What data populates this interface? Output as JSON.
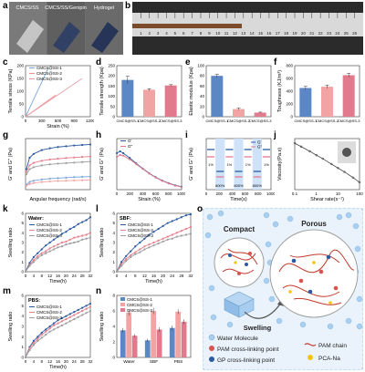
{
  "panel_letters": {
    "a": "a",
    "b": "b",
    "c": "c",
    "d": "d",
    "e": "e",
    "f": "f",
    "g": "g",
    "h": "h",
    "i": "i",
    "j": "j",
    "k": "k",
    "l": "l",
    "m": "m",
    "n": "n",
    "o": "o"
  },
  "photos": {
    "a_labels": [
      "CMCS/SS",
      "CMCS/SS/Genipin",
      "Hydrogel"
    ],
    "ruler_numbers": [
      "1",
      "2",
      "3",
      "4",
      "5",
      "6",
      "7",
      "8",
      "9",
      "10",
      "11",
      "12",
      "13",
      "14",
      "15",
      "16",
      "17",
      "18",
      "19",
      "20",
      "21",
      "22",
      "23",
      "24",
      "25",
      "26"
    ]
  },
  "chart_data": [
    {
      "id": "c",
      "type": "line",
      "xlabel": "Strain (%)",
      "ylabel": "Tensile stress (KPa)",
      "xlim": [
        0,
        1200
      ],
      "ylim": [
        0,
        200
      ],
      "xticks": [
        0,
        300,
        600,
        900,
        1200
      ],
      "yticks": [
        0,
        50,
        100,
        150,
        200
      ],
      "series": [
        {
          "name": "CMCS@SS-1",
          "color": "#7aa7d8",
          "x": [
            0,
            420
          ],
          "y": [
            0,
            190
          ]
        },
        {
          "name": "CMCS@SS-2",
          "color": "#f08f8f",
          "x": [
            0,
            560
          ],
          "y": [
            0,
            85
          ]
        },
        {
          "name": "CMCS@SS-3",
          "color": "#e8a0a8",
          "x": [
            0,
            1050
          ],
          "y": [
            0,
            150
          ]
        }
      ]
    },
    {
      "id": "d",
      "type": "bar",
      "ylabel": "Tensile strength (Kpa)",
      "ylim": [
        0,
        250
      ],
      "yticks": [
        0,
        50,
        100,
        150,
        200,
        250
      ],
      "categories": [
        "CMCS@SS-1",
        "CMCS@SS-2",
        "CMCS@SS-3"
      ],
      "values": [
        180,
        132,
        153
      ],
      "errors": [
        18,
        5,
        4
      ],
      "colors": [
        "#5b87c5",
        "#f2a3a3",
        "#e27a8e"
      ]
    },
    {
      "id": "e",
      "type": "bar",
      "ylabel": "Elastic modulus (Kpa)",
      "ylim": [
        0,
        100
      ],
      "yticks": [
        0,
        20,
        40,
        60,
        80,
        100
      ],
      "categories": [
        "CMCS@SS-1",
        "CMCS@SS-2",
        "CMCS@SS-3"
      ],
      "values": [
        80,
        15,
        8
      ],
      "errors": [
        3,
        2,
        1
      ],
      "colors": [
        "#5b87c5",
        "#f2a3a3",
        "#e27a8e"
      ]
    },
    {
      "id": "f",
      "type": "bar",
      "ylabel": "Toughness (KJ/m³)",
      "ylim": [
        0,
        800
      ],
      "yticks": [
        0,
        200,
        400,
        600,
        800
      ],
      "categories": [
        "CMCS@SS-1",
        "CMCS@SS-2",
        "CMCS@SS-3"
      ],
      "values": [
        450,
        470,
        650
      ],
      "errors": [
        25,
        25,
        30
      ],
      "colors": [
        "#5b87c5",
        "#f2a3a3",
        "#e27a8e"
      ]
    },
    {
      "id": "g",
      "type": "line",
      "xlabel": "Angular frequency (rad/s)",
      "ylabel": "G' and G'' (Pa)",
      "xlim": [
        0,
        80
      ],
      "ylim": [
        0,
        20000
      ],
      "series": [
        {
          "name": "G' CMCS@SS-1",
          "color": "#2c5aa0",
          "x": [
            1,
            5,
            10,
            20,
            30,
            40,
            50,
            60,
            70,
            80
          ],
          "y": [
            8000,
            12500,
            14000,
            15500,
            16200,
            16700,
            17000,
            17300,
            17500,
            17700
          ]
        },
        {
          "name": "G' CMCS@SS-2",
          "color": "#e57f8c",
          "x": [
            1,
            5,
            10,
            20,
            30,
            40,
            50,
            60,
            70,
            80
          ],
          "y": [
            7000,
            9500,
            10500,
            11300,
            11800,
            12100,
            12400,
            12600,
            12800,
            13000
          ]
        },
        {
          "name": "G' CMCS@SS-3",
          "color": "#9e9e9e",
          "x": [
            1,
            5,
            10,
            20,
            30,
            40,
            50,
            60,
            70,
            80
          ],
          "y": [
            6000,
            8000,
            8800,
            9500,
            9900,
            10200,
            10400,
            10600,
            10800,
            11000
          ]
        },
        {
          "name": "G'' CMCS@SS-1",
          "color": "#7aa7d8",
          "x": [
            1,
            5,
            10,
            20,
            30,
            40,
            50,
            60,
            70,
            80
          ],
          "y": [
            2000,
            3000,
            3500,
            4000,
            4300,
            4500,
            4700,
            4900,
            5000,
            5100
          ]
        },
        {
          "name": "G'' CMCS@SS-2",
          "color": "#f2a3a3",
          "x": [
            1,
            5,
            10,
            20,
            30,
            40,
            50,
            60,
            70,
            80
          ],
          "y": [
            1500,
            2200,
            2600,
            3000,
            3200,
            3400,
            3500,
            3600,
            3700,
            3800
          ]
        }
      ]
    },
    {
      "id": "h",
      "type": "line",
      "xlabel": "Strain (%)",
      "ylabel": "G' and G'' (Pa)",
      "xlim": [
        0,
        1000
      ],
      "ylim": [
        0,
        1400
      ],
      "xticks": [
        0,
        200,
        400,
        600,
        800,
        1000
      ],
      "series": [
        {
          "name": "G'",
          "color": "#2c5aa0",
          "x": [
            1,
            50,
            100,
            200,
            300,
            400,
            500,
            600,
            700,
            800,
            900,
            1000
          ],
          "y": [
            1000,
            1050,
            1000,
            870,
            720,
            580,
            450,
            340,
            250,
            180,
            120,
            80
          ]
        },
        {
          "name": "G''",
          "color": "#e27a8e",
          "x": [
            1,
            50,
            100,
            200,
            300,
            400,
            500,
            600,
            700,
            800,
            900,
            1000
          ],
          "y": [
            900,
            950,
            930,
            830,
            700,
            570,
            440,
            330,
            240,
            170,
            110,
            70
          ]
        }
      ]
    },
    {
      "id": "i",
      "type": "line",
      "xlabel": "Time(s)",
      "ylabel": "G' and G'' (Pa)",
      "xlim": [
        0,
        1000
      ],
      "xticks": [
        0,
        200,
        400,
        600,
        800,
        1000
      ],
      "strain_labels": [
        "1%",
        "800%",
        "1%",
        "800%",
        "1%",
        "800%",
        "1%"
      ],
      "series": [
        {
          "name": "G'",
          "color": "#2c5aa0"
        },
        {
          "name": "G''",
          "color": "#e27a8e"
        }
      ]
    },
    {
      "id": "j",
      "type": "line",
      "xlabel": "Shear rate(s⁻¹)",
      "ylabel": "Viscosity(Pa.s)",
      "xlim": [
        0.1,
        100
      ],
      "xticks": [
        0.1,
        1,
        10,
        100
      ],
      "series": [
        {
          "name": "viscosity",
          "color": "#444444",
          "x": [
            0.1,
            0.2,
            0.5,
            1,
            2,
            5,
            10,
            20,
            50,
            100
          ],
          "y": [
            1000,
            600,
            300,
            170,
            100,
            45,
            25,
            14,
            6,
            3
          ]
        }
      ]
    },
    {
      "id": "k",
      "type": "line",
      "title": "Water:",
      "xlabel": "Time(h)",
      "ylabel": "Swelling ratio",
      "xlim": [
        0,
        32
      ],
      "ylim": [
        0,
        6
      ],
      "xticks": [
        0,
        4,
        8,
        12,
        16,
        20,
        24,
        28,
        32
      ],
      "yticks": [
        0,
        1,
        2,
        3,
        4,
        5,
        6
      ],
      "x": [
        0,
        2,
        4,
        6,
        8,
        10,
        12,
        14,
        16,
        18,
        20,
        22,
        24,
        26,
        28,
        30,
        32
      ],
      "series": [
        {
          "name": "CMCS@SS-1",
          "color": "#2c5aa0",
          "y": [
            0,
            0.9,
            1.5,
            1.9,
            2.3,
            2.7,
            3.0,
            3.3,
            3.6,
            3.9,
            4.1,
            4.4,
            4.6,
            4.9,
            5.1,
            5.3,
            5.6
          ]
        },
        {
          "name": "CMCS@SS-2",
          "color": "#e57f8c",
          "y": [
            0,
            0.7,
            1.2,
            1.6,
            1.9,
            2.1,
            2.4,
            2.6,
            2.8,
            3.0,
            3.1,
            3.3,
            3.5,
            3.6,
            3.7,
            3.8,
            4.0
          ]
        },
        {
          "name": "CMCS@SS-3",
          "color": "#9e9e9e",
          "y": [
            0,
            0.6,
            1.0,
            1.4,
            1.7,
            1.9,
            2.1,
            2.3,
            2.5,
            2.6,
            2.8,
            2.9,
            3.0,
            3.1,
            3.3,
            3.4,
            3.5
          ]
        }
      ]
    },
    {
      "id": "l",
      "type": "line",
      "title": "SBF:",
      "xlabel": "Time(h)",
      "ylabel": "Swelling ratio",
      "xlim": [
        0,
        32
      ],
      "ylim": [
        0,
        6
      ],
      "xticks": [
        0,
        4,
        8,
        12,
        16,
        20,
        24,
        28,
        32
      ],
      "yticks": [
        0,
        1,
        2,
        3,
        4,
        5,
        6
      ],
      "x": [
        0,
        2,
        4,
        6,
        8,
        10,
        12,
        14,
        16,
        18,
        20,
        22,
        24,
        26,
        28,
        30,
        32
      ],
      "series": [
        {
          "name": "CMCS@SS-1",
          "color": "#2c5aa0",
          "y": [
            0,
            1.0,
            1.6,
            2.1,
            2.6,
            3.0,
            3.4,
            3.8,
            4.1,
            4.4,
            4.7,
            5.0,
            5.2,
            5.4,
            5.6,
            5.8,
            5.9
          ]
        },
        {
          "name": "CMCS@SS-2",
          "color": "#e57f8c",
          "y": [
            0,
            0.8,
            1.3,
            1.7,
            2.0,
            2.3,
            2.6,
            2.8,
            3.0,
            3.2,
            3.4,
            3.6,
            3.8,
            4.0,
            4.2,
            4.4,
            4.6
          ]
        },
        {
          "name": "CMCS@SS-3",
          "color": "#9e9e9e",
          "y": [
            0,
            0.6,
            1.1,
            1.5,
            1.8,
            2.0,
            2.3,
            2.5,
            2.7,
            2.9,
            3.1,
            3.3,
            3.4,
            3.6,
            3.7,
            3.8,
            3.9
          ]
        }
      ]
    },
    {
      "id": "m",
      "type": "line",
      "title": "PBS:",
      "xlabel": "Time(h)",
      "ylabel": "Swelling ratio",
      "xlim": [
        0,
        32
      ],
      "ylim": [
        0,
        6
      ],
      "xticks": [
        0,
        4,
        8,
        12,
        16,
        20,
        24,
        28,
        32
      ],
      "yticks": [
        0,
        1,
        2,
        3,
        4,
        5,
        6
      ],
      "x": [
        0,
        2,
        4,
        6,
        8,
        10,
        12,
        14,
        16,
        18,
        20,
        22,
        24,
        26,
        28,
        30,
        32
      ],
      "series": [
        {
          "name": "CMCS@SS-1",
          "color": "#2c5aa0",
          "y": [
            0,
            1.0,
            1.6,
            2.0,
            2.4,
            2.7,
            3.0,
            3.3,
            3.6,
            3.8,
            4.0,
            4.2,
            4.4,
            4.6,
            4.8,
            5.0,
            5.2
          ]
        },
        {
          "name": "CMCS@SS-2",
          "color": "#e57f8c",
          "y": [
            0,
            0.9,
            1.4,
            1.8,
            2.2,
            2.5,
            2.8,
            3.1,
            3.3,
            3.5,
            3.7,
            3.9,
            4.1,
            4.3,
            4.5,
            4.7,
            4.9
          ]
        },
        {
          "name": "CMCS@SS-3",
          "color": "#9e9e9e",
          "y": [
            0,
            0.7,
            1.2,
            1.6,
            1.9,
            2.2,
            2.5,
            2.7,
            2.9,
            3.1,
            3.3,
            3.5,
            3.7,
            3.9,
            4.1,
            4.3,
            4.5
          ]
        }
      ]
    },
    {
      "id": "n",
      "type": "bar",
      "ylabel": "Swelling ratio",
      "ylim": [
        0,
        8
      ],
      "yticks": [
        0,
        2,
        4,
        6,
        8
      ],
      "categories": [
        "Water",
        "SBF",
        "PBS"
      ],
      "series": [
        {
          "name": "CMCS@SS-1",
          "color": "#5b87c5",
          "values": [
            3.5,
            2.2,
            3.8
          ],
          "errors": [
            0.3,
            0.2,
            0.3
          ]
        },
        {
          "name": "CMCS@SS-2",
          "color": "#f2a3a3",
          "values": [
            5.8,
            6.0,
            5.9
          ],
          "errors": [
            0.4,
            0.4,
            0.3
          ]
        },
        {
          "name": "CMCS@SS-3",
          "color": "#e27a8e",
          "values": [
            2.8,
            3.6,
            4.6
          ],
          "errors": [
            0.2,
            0.3,
            0.3
          ]
        }
      ]
    }
  ],
  "schematic": {
    "compact": "Compact",
    "porous": "Porous",
    "swelling": "Swelling",
    "legend": {
      "water": "Water Molecule",
      "pam_point": "PAM cross-linking point",
      "gp_point": "GP cross-linking point",
      "pam_chain": "PAM chain",
      "pca": "PCA-Na"
    },
    "colors": {
      "water": "#a9cff0",
      "pam_point": "#d9534f",
      "gp_point": "#2c5aa0",
      "pam_chain": "#c0392b",
      "pca": "#f1c40f"
    }
  }
}
